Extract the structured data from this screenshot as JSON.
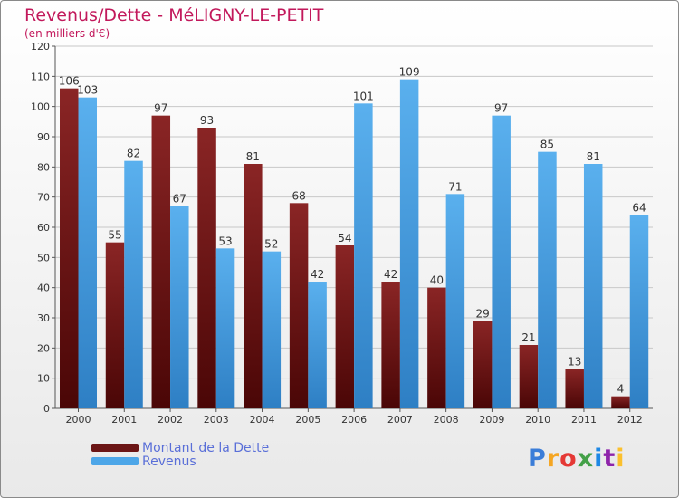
{
  "chart_data": {
    "type": "bar",
    "title": "Revenus/Dette - MéLIGNY-LE-PETIT",
    "subtitle": "(en milliers d'€)",
    "categories": [
      "2000",
      "2001",
      "2002",
      "2003",
      "2004",
      "2005",
      "2006",
      "2007",
      "2008",
      "2009",
      "2010",
      "2011",
      "2012"
    ],
    "series": [
      {
        "name": "Montant de la Dette",
        "color": "#7a1a1a",
        "values": [
          106,
          55,
          97,
          93,
          81,
          68,
          54,
          42,
          40,
          29,
          21,
          13,
          4
        ]
      },
      {
        "name": "Revenus",
        "color": "#4da6e8",
        "values": [
          103,
          82,
          67,
          53,
          52,
          42,
          101,
          109,
          71,
          97,
          85,
          81,
          64
        ]
      }
    ],
    "ylim": [
      0,
      120
    ],
    "yticks": [
      0,
      10,
      20,
      30,
      40,
      50,
      60,
      70,
      80,
      90,
      100,
      110,
      120
    ],
    "grid": true,
    "legend_position": "bottom-left"
  },
  "logo": {
    "text": "Proxiti"
  }
}
